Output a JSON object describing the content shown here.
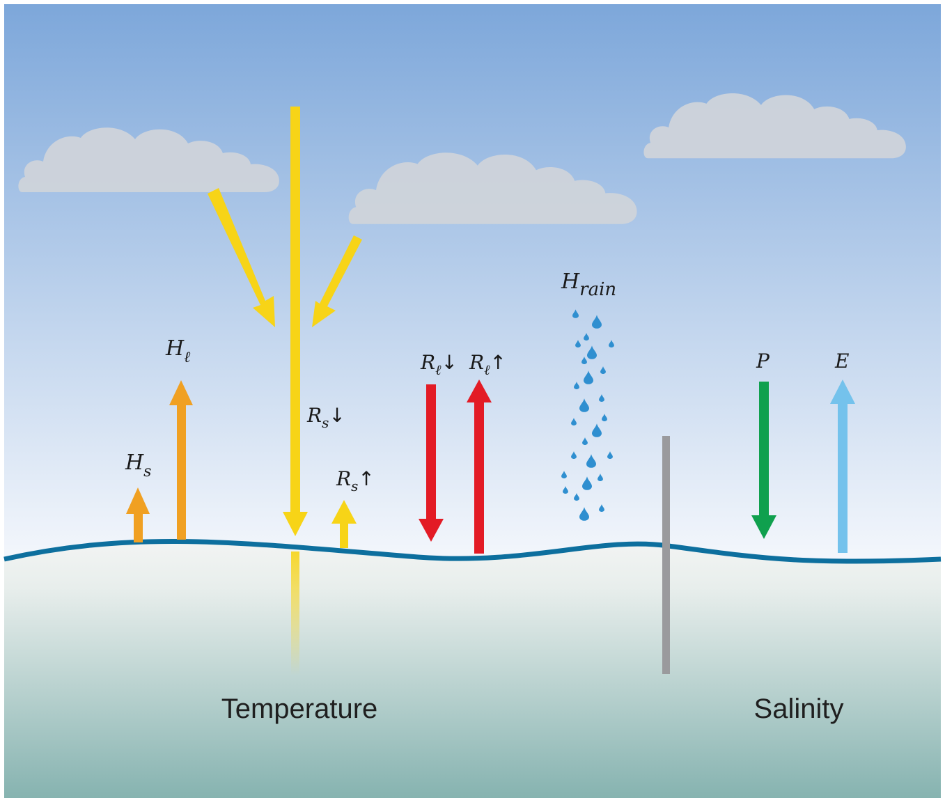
{
  "colors": {
    "sky_top": "#7da7da",
    "sky_bottom": "#f4f7fc",
    "ocean_top": "#f2f4f3",
    "ocean_bottom": "#86b3b0",
    "surface_line": "#0d6f9e",
    "cloud": "#cfd4db",
    "shortwave": "#f7d417",
    "sensible_heat": "#f0a022",
    "longwave": "#e31b25",
    "precipitation": "#0fa04e",
    "evaporation": "#74c2ec",
    "rain_drop": "#2f8fd0",
    "divider": "#9a9a9d"
  },
  "labels": {
    "h_s": {
      "base": "H",
      "sub": "s"
    },
    "h_l": {
      "base": "H",
      "sub": "ℓ"
    },
    "r_s_down": {
      "base": "R",
      "sub": "s",
      "arrow": "↓"
    },
    "r_s_up": {
      "base": "R",
      "sub": "s",
      "arrow": "↑"
    },
    "r_l_down": {
      "base": "R",
      "sub": "ℓ",
      "arrow": "↓"
    },
    "r_l_up": {
      "base": "R",
      "sub": "ℓ",
      "arrow": "↑"
    },
    "h_rain": {
      "base": "H",
      "sub": "rain"
    },
    "p": {
      "base": "P"
    },
    "e": {
      "base": "E"
    }
  },
  "captions": {
    "temperature": "Temperature",
    "salinity": "Salinity"
  }
}
